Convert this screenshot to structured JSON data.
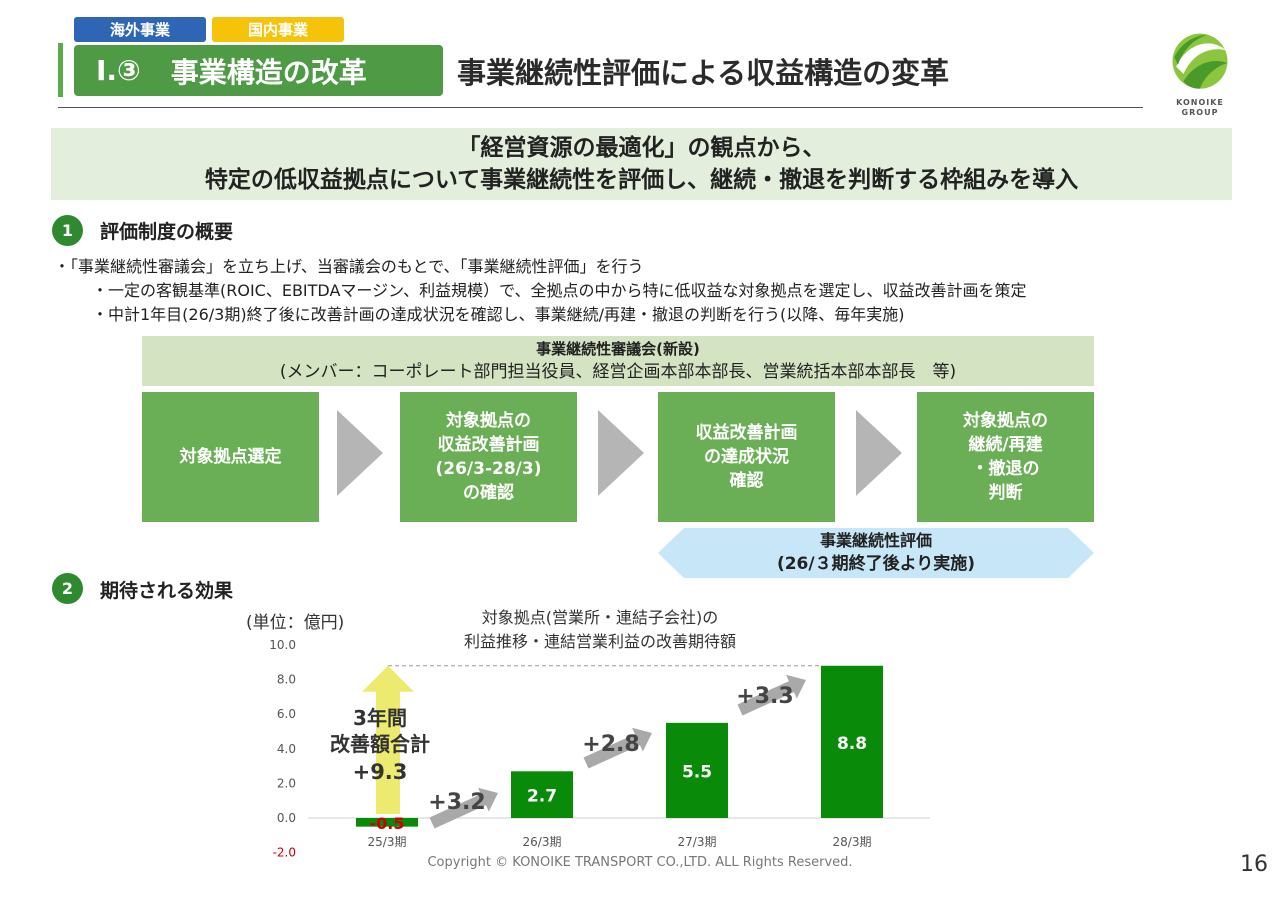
{
  "tags": {
    "overseas": "海外事業",
    "domestic": "国内事業"
  },
  "section": {
    "number": "Ⅰ.③",
    "title": "事業構造の改革"
  },
  "page_title": "事業継続性評価による収益構造の変革",
  "logo": {
    "line1": "KONOIKE",
    "line2": "GROUP"
  },
  "banner": {
    "line1": "「経営資源の最適化」の観点から、",
    "line2": "特定の低収益拠点について事業継続性を評価し、継続・撤退を判断する枠組みを導入"
  },
  "part1": {
    "num": "1",
    "heading": "評価制度の概要",
    "bullet_main": "・「事業継続性審議会」を立ち上げ、当審議会のもとで、「事業継続性評価」を行う",
    "bullet_sub1": "・一定の客観基準(ROIC、EBITDAマージン、利益規模）で、全拠点の中から特に低収益な対象拠点を選定し、収益改善計画を策定",
    "bullet_sub2": "・中計1年目(26/3期)終了後に改善計画の達成状況を確認し、事業継続/再建・撤退の判断を行う(以降、毎年実施)"
  },
  "council": {
    "title": "事業継続性審議会(新設)",
    "members": "(メンバー：コーポレート部門担当役員、経営企画本部本部長、営業統括本部本部長　等)"
  },
  "flow_steps": [
    "対象拠点選定",
    "対象拠点の\n収益改善計画\n(26/3-28/3)\nの確認",
    "収益改善計画\nの達成状況\n確認",
    "対象拠点の\n継続/再建\n・撤退の\n判断"
  ],
  "evaluation": {
    "line1": "事業継続性評価",
    "line2": "(26/３期終了後より実施)"
  },
  "part2": {
    "num": "2",
    "heading": "期待される効果"
  },
  "chart_data": {
    "type": "bar",
    "title": "対象拠点(営業所・連結子会社)の\n利益推移・連結営業利益の改善期待額",
    "unit_label": "(単位：億円)",
    "categories": [
      "25/3期",
      "26/3期",
      "27/3期",
      "28/3期"
    ],
    "values": [
      -0.5,
      2.7,
      5.5,
      8.8
    ],
    "value_labels": [
      "-0.5",
      "2.7",
      "5.5",
      "8.8"
    ],
    "yticks": [
      "10.0",
      "8.0",
      "6.0",
      "4.0",
      "2.0",
      "0.0",
      "-2.0"
    ],
    "ylim": [
      -2,
      10
    ],
    "increments": [
      "+3.2",
      "+2.8",
      "+3.3"
    ],
    "total_label": {
      "line1": "3年間",
      "line2": "改善額合計",
      "line3": "+9.3"
    },
    "bar_color": "#098a09",
    "negative_label_color": "#cc0000"
  },
  "footer": "Copyright © KONOIKE TRANSPORT CO.,LTD.  ALL Rights Reserved.",
  "page_number": "16"
}
